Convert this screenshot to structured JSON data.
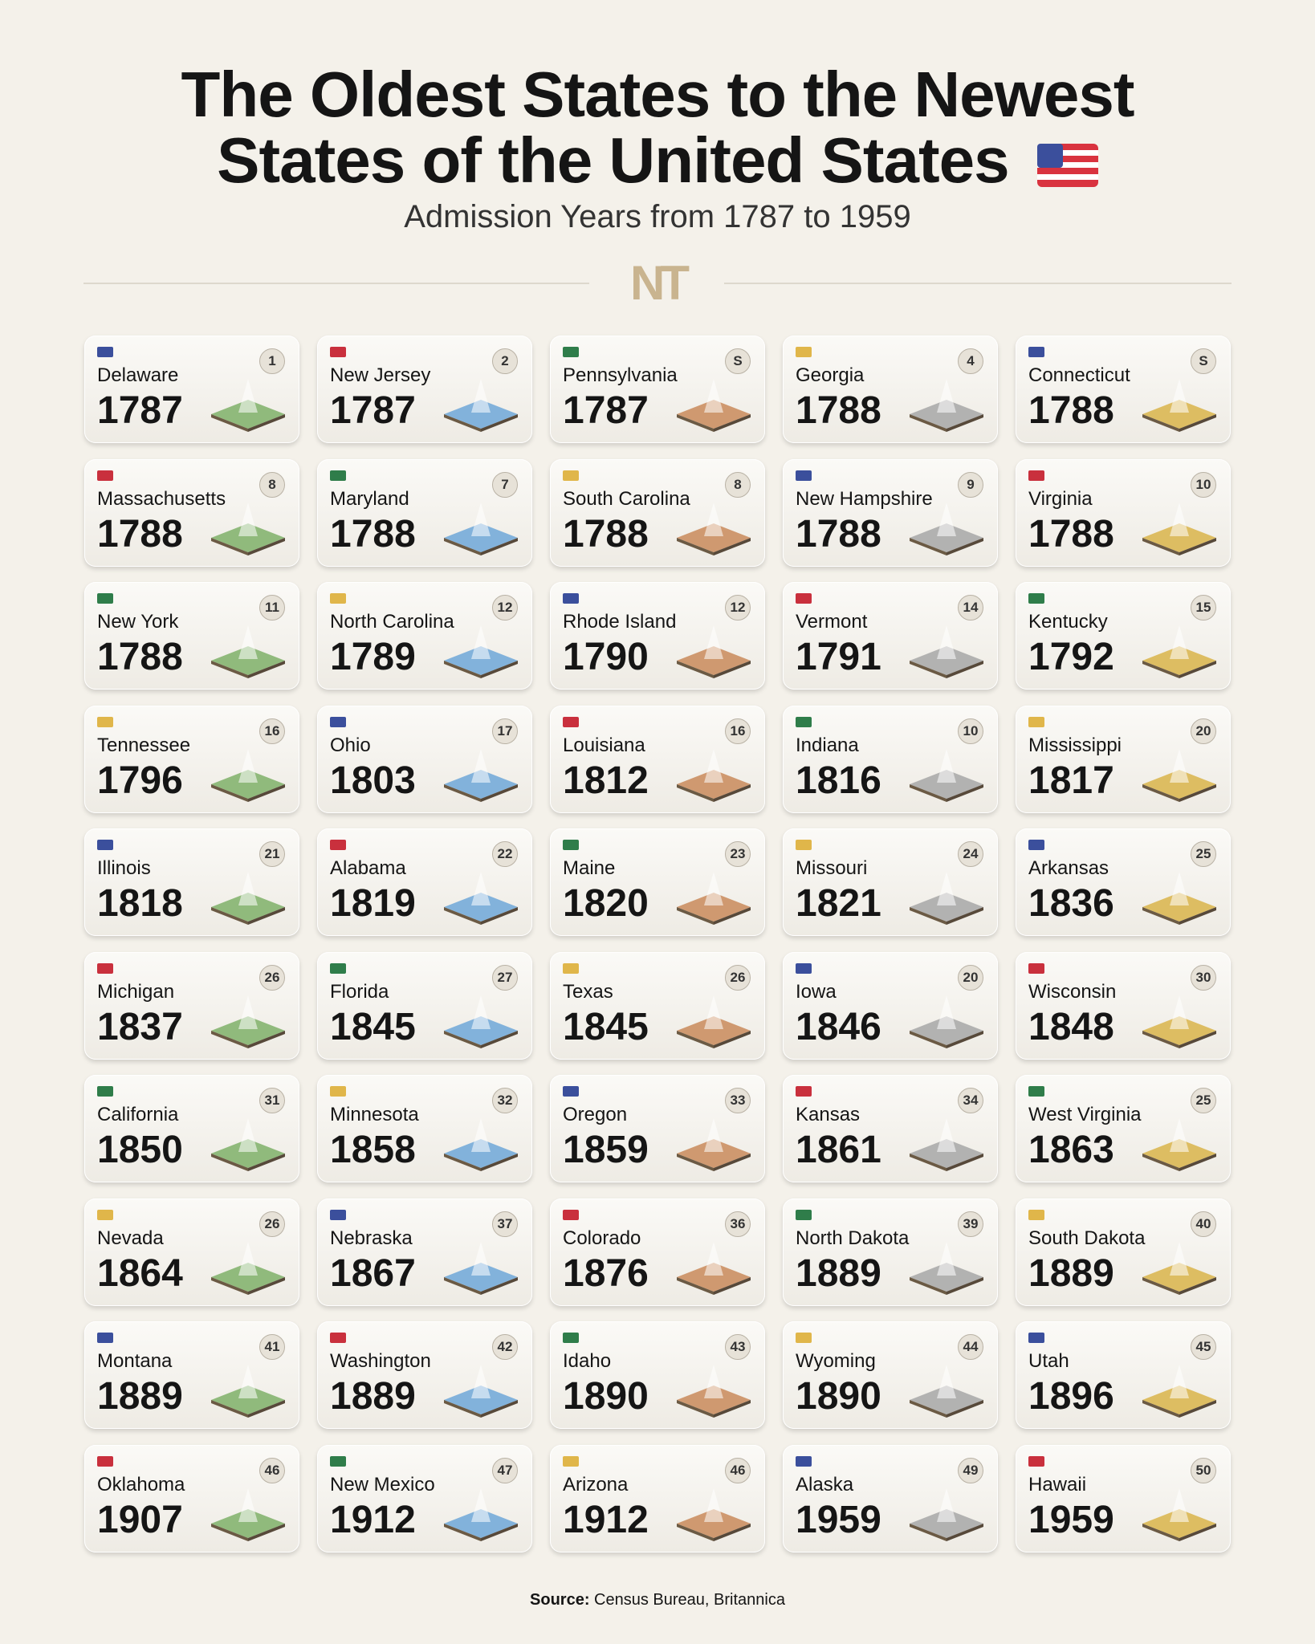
{
  "header": {
    "title_lines": [
      "The Oldest States to the Newest",
      "States of the United States"
    ],
    "subtitle": "Admission Years from 1787 to 1959",
    "logo": "NT"
  },
  "cards": [
    {
      "name": "Delaware",
      "year": 1787,
      "badge": "1"
    },
    {
      "name": "New Jersey",
      "year": 1787,
      "badge": "2"
    },
    {
      "name": "Pennsylvania",
      "year": 1787,
      "badge": "S"
    },
    {
      "name": "Georgia",
      "year": 1788,
      "badge": "4"
    },
    {
      "name": "Connecticut",
      "year": 1788,
      "badge": "S"
    },
    {
      "name": "Massachusetts",
      "year": 1788,
      "badge": "8"
    },
    {
      "name": "Maryland",
      "year": 1788,
      "badge": "7"
    },
    {
      "name": "South Carolina",
      "year": 1788,
      "badge": "8"
    },
    {
      "name": "New Hampshire",
      "year": 1788,
      "badge": "9"
    },
    {
      "name": "Virginia",
      "year": 1788,
      "badge": "10"
    },
    {
      "name": "New York",
      "year": 1788,
      "badge": "11"
    },
    {
      "name": "North Carolina",
      "year": 1789,
      "badge": "12"
    },
    {
      "name": "Rhode Island",
      "year": 1790,
      "badge": "12"
    },
    {
      "name": "Vermont",
      "year": 1791,
      "badge": "14"
    },
    {
      "name": "Kentucky",
      "year": 1792,
      "badge": "15"
    },
    {
      "name": "Tennessee",
      "year": 1796,
      "badge": "16"
    },
    {
      "name": "Ohio",
      "year": 1803,
      "badge": "17"
    },
    {
      "name": "Louisiana",
      "year": 1812,
      "badge": "16"
    },
    {
      "name": "Indiana",
      "year": 1816,
      "badge": "10"
    },
    {
      "name": "Mississippi",
      "year": 1817,
      "badge": "20"
    },
    {
      "name": "Illinois",
      "year": 1818,
      "badge": "21"
    },
    {
      "name": "Alabama",
      "year": 1819,
      "badge": "22"
    },
    {
      "name": "Maine",
      "year": 1820,
      "badge": "23"
    },
    {
      "name": "Missouri",
      "year": 1821,
      "badge": "24"
    },
    {
      "name": "Arkansas",
      "year": 1836,
      "badge": "25"
    },
    {
      "name": "Michigan",
      "year": 1837,
      "badge": "26"
    },
    {
      "name": "Florida",
      "year": 1845,
      "badge": "27"
    },
    {
      "name": "Texas",
      "year": 1845,
      "badge": "26"
    },
    {
      "name": "Iowa",
      "year": 1846,
      "badge": "20"
    },
    {
      "name": "Wisconsin",
      "year": 1848,
      "badge": "30"
    },
    {
      "name": "California",
      "year": 1850,
      "badge": "31"
    },
    {
      "name": "Minnesota",
      "year": 1858,
      "badge": "32"
    },
    {
      "name": "Oregon",
      "year": 1859,
      "badge": "33"
    },
    {
      "name": "Kansas",
      "year": 1861,
      "badge": "34"
    },
    {
      "name": "West Virginia",
      "year": 1863,
      "badge": "25"
    },
    {
      "name": "Nevada",
      "year": 1864,
      "badge": "26"
    },
    {
      "name": "Nebraska",
      "year": 1867,
      "badge": "37"
    },
    {
      "name": "Colorado",
      "year": 1876,
      "badge": "36"
    },
    {
      "name": "North Dakota",
      "year": 1889,
      "badge": "39"
    },
    {
      "name": "South Dakota",
      "year": 1889,
      "badge": "40"
    },
    {
      "name": "Montana",
      "year": 1889,
      "badge": "41"
    },
    {
      "name": "Washington",
      "year": 1889,
      "badge": "42"
    },
    {
      "name": "Idaho",
      "year": 1890,
      "badge": "43"
    },
    {
      "name": "Wyoming",
      "year": 1890,
      "badge": "44"
    },
    {
      "name": "Utah",
      "year": 1896,
      "badge": "45"
    },
    {
      "name": "Oklahoma",
      "year": 1907,
      "badge": "46"
    },
    {
      "name": "New Mexico",
      "year": 1912,
      "badge": "47"
    },
    {
      "name": "Arizona",
      "year": 1912,
      "badge": "46"
    },
    {
      "name": "Alaska",
      "year": 1959,
      "badge": "49"
    },
    {
      "name": "Hawaii",
      "year": 1959,
      "badge": "50"
    }
  ],
  "footer": {
    "source_label": "Source:",
    "source_text": "Census Bureau, Britannica"
  }
}
